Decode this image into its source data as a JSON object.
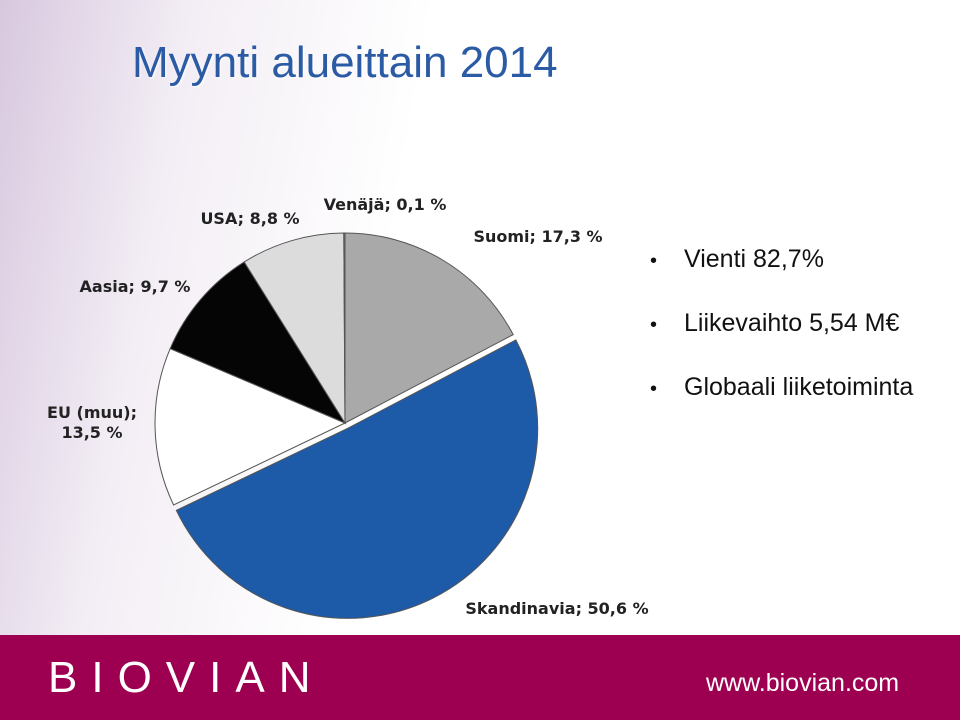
{
  "header": {
    "title": "Myynti alueittain 2014"
  },
  "bullets": [
    "Vienti 82,7%",
    "Liikevaihto 5,54 M€",
    "Globaali liiketoiminta"
  ],
  "footer": {
    "brand": "BIOVIAN",
    "url": "www.biovian.com"
  },
  "chart_data": {
    "type": "pie",
    "values": [
      17.3,
      50.6,
      13.5,
      9.7,
      8.8,
      0.1
    ],
    "value_labels": [
      "Suomi; 17,3 %",
      "Skandinavia; 50,6 %",
      "EU (muu);\n13,5 %",
      "Aasia; 9,7 %",
      "USA; 8,8 %",
      "Venäjä; 0,1 %"
    ],
    "colors": [
      "#a9a9a9",
      "#1d5aa8",
      "#ffffff",
      "#050505",
      "#dcdcdc",
      "#808080"
    ]
  }
}
